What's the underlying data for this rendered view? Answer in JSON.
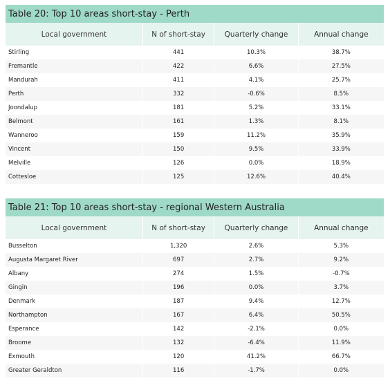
{
  "tables": [
    {
      "title": "Table 20: Top 10 areas short-stay - Perth",
      "headers": [
        "Local government",
        "N of short-stay",
        "Quarterly change",
        "Annual change"
      ],
      "rows": [
        [
          "Stirling",
          "441",
          "10.3%",
          "38.7%"
        ],
        [
          "Fremantle",
          "422",
          "6.6%",
          "27.5%"
        ],
        [
          "Mandurah",
          "411",
          "4.1%",
          "25.7%"
        ],
        [
          "Perth",
          "332",
          "-0.6%",
          "8.5%"
        ],
        [
          "Joondalup",
          "181",
          "5.2%",
          "33.1%"
        ],
        [
          "Belmont",
          "161",
          "1.3%",
          "8.1%"
        ],
        [
          "Wanneroo",
          "159",
          "11.2%",
          "35.9%"
        ],
        [
          "Vincent",
          "150",
          "9.5%",
          "33.9%"
        ],
        [
          "Melville",
          "126",
          "0.0%",
          "18.9%"
        ],
        [
          "Cottesloe",
          "125",
          "12.6%",
          "40.4%"
        ]
      ]
    },
    {
      "title": "Table 21: Top 10 areas short-stay - regional Western Australia",
      "headers": [
        "Local government",
        "N of short-stay",
        "Quarterly change",
        "Annual change"
      ],
      "rows": [
        [
          "Busselton",
          "1,320",
          "2.6%",
          "5.3%"
        ],
        [
          "Augusta Margaret River",
          "697",
          "2.7%",
          "9.2%"
        ],
        [
          "Albany",
          "274",
          "1.5%",
          "-0.7%"
        ],
        [
          "Gingin",
          "196",
          "0.0%",
          "3.7%"
        ],
        [
          "Denmark",
          "187",
          "9.4%",
          "12.7%"
        ],
        [
          "Northampton",
          "167",
          "6.4%",
          "50.5%"
        ],
        [
          "Esperance",
          "142",
          "-2.1%",
          "0.0%"
        ],
        [
          "Broome",
          "132",
          "-6.4%",
          "11.9%"
        ],
        [
          "Exmouth",
          "120",
          "41.2%",
          "66.7%"
        ],
        [
          "Greater Geraldton",
          "116",
          "-1.7%",
          "0.0%"
        ]
      ]
    }
  ],
  "colors": {
    "title_band": "#9fd9c7",
    "header_band": "#e6f4ef",
    "alt_row": "#f6f6f6"
  }
}
